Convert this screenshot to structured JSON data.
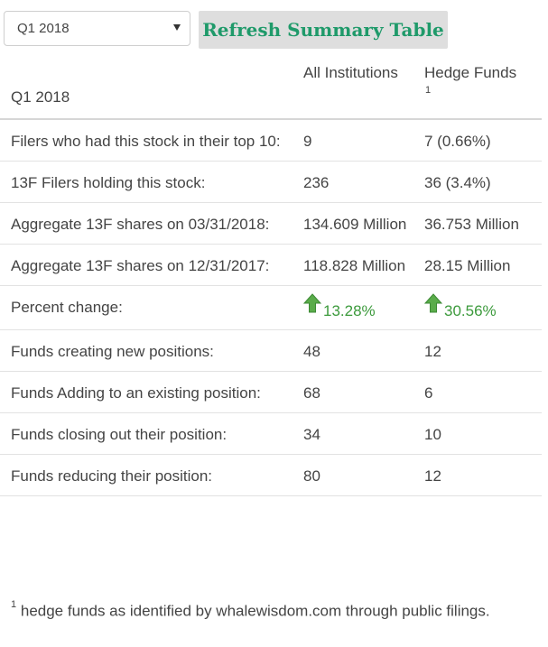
{
  "controls": {
    "period_select_value": "Q1 2018",
    "refresh_button_label": "Refresh Summary Table"
  },
  "table": {
    "headers": {
      "quarter": "Q1 2018",
      "all_institutions": "All Institutions",
      "hedge_funds": "Hedge Funds",
      "hedge_funds_footnote_mark": "1"
    },
    "rows": [
      {
        "label": "Filers who had this stock in their top 10:",
        "all": "9",
        "hedge": "7 (0.66%)"
      },
      {
        "label": "13F Filers holding this stock:",
        "all": "236",
        "hedge": "36 (3.4%)"
      },
      {
        "label": "Aggregate 13F shares on 03/31/2018:",
        "all": "134.609 Million",
        "hedge": "36.753 Million"
      },
      {
        "label": "Aggregate 13F shares on 12/31/2017:",
        "all": "118.828 Million",
        "hedge": "28.15 Million"
      },
      {
        "label": "Percent change:",
        "all": "13.28%",
        "hedge": "30.56%",
        "trend_icon": "arrow-up-icon",
        "trend_color": "#3c9a3c"
      },
      {
        "label": "Funds creating new positions:",
        "all": "48",
        "hedge": "12"
      },
      {
        "label": "Funds Adding to an existing position:",
        "all": "68",
        "hedge": "6"
      },
      {
        "label": "Funds closing out their position:",
        "all": "34",
        "hedge": "10"
      },
      {
        "label": "Funds reducing their position:",
        "all": "80",
        "hedge": "12"
      }
    ]
  },
  "footnote": {
    "mark": "1",
    "text": "hedge funds as identified by whalewisdom.com through public filings."
  },
  "colors": {
    "accent_green": "#1f9a6a",
    "positive_green": "#3c9a3c",
    "button_bg": "#dedede"
  }
}
